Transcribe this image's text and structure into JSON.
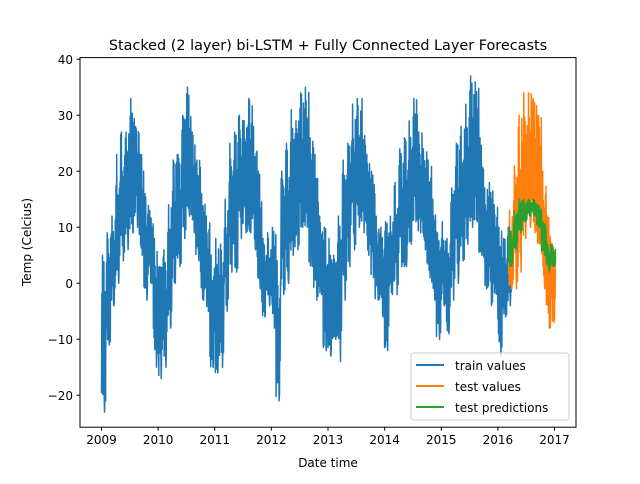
{
  "chart_data": {
    "type": "line",
    "title": "Stacked (2 layer) bi-LSTM + Fully Connected Layer Forecasts",
    "xlabel": "Date time",
    "ylabel": "Temp (Celcius)",
    "xlim": [
      2008.62,
      2017.38
    ],
    "ylim": [
      -25.7,
      40.3
    ],
    "xticks": [
      2009,
      2010,
      2011,
      2012,
      2013,
      2014,
      2015,
      2016,
      2017
    ],
    "xtick_labels": [
      "2009",
      "2010",
      "2011",
      "2012",
      "2013",
      "2014",
      "2015",
      "2016",
      "2017"
    ],
    "yticks": [
      -20,
      -10,
      0,
      10,
      20,
      30,
      40
    ],
    "ytick_labels": [
      "−20",
      "−10",
      "0",
      "10",
      "20",
      "30",
      "40"
    ],
    "legend_position": "bottom-right",
    "note": "values are monthly [min,max] envelopes of daily temperatures; start is fractional year",
    "series": [
      {
        "name": "train values",
        "color": "#1f77b4",
        "start": 2009.0,
        "monthly_minmax": [
          [
            -23,
            5
          ],
          [
            -11,
            9
          ],
          [
            -4,
            12
          ],
          [
            0,
            23
          ],
          [
            4,
            27
          ],
          [
            6,
            27
          ],
          [
            9,
            33
          ],
          [
            10,
            28
          ],
          [
            5,
            23
          ],
          [
            -3,
            16
          ],
          [
            0,
            13
          ],
          [
            -15,
            8
          ],
          [
            -17,
            3
          ],
          [
            -15,
            6
          ],
          [
            -8,
            14
          ],
          [
            0,
            22
          ],
          [
            3,
            23
          ],
          [
            8,
            30
          ],
          [
            12,
            35
          ],
          [
            9,
            27
          ],
          [
            4,
            22
          ],
          [
            -3,
            16
          ],
          [
            -5,
            12
          ],
          [
            -15,
            5
          ],
          [
            -16,
            8
          ],
          [
            -15,
            7
          ],
          [
            -5,
            15
          ],
          [
            2,
            25
          ],
          [
            2,
            27
          ],
          [
            8,
            30
          ],
          [
            9,
            29
          ],
          [
            9,
            33
          ],
          [
            6,
            28
          ],
          [
            -1,
            20
          ],
          [
            -6,
            8
          ],
          [
            -4,
            9
          ],
          [
            -8,
            10
          ],
          [
            -21,
            4
          ],
          [
            -2,
            20
          ],
          [
            0,
            25
          ],
          [
            5,
            31
          ],
          [
            6,
            29
          ],
          [
            10,
            34
          ],
          [
            10,
            35
          ],
          [
            3,
            26
          ],
          [
            -3,
            23
          ],
          [
            -2,
            12
          ],
          [
            -12,
            10
          ],
          [
            -13,
            8
          ],
          [
            -10,
            5
          ],
          [
            -14,
            12
          ],
          [
            -3,
            22
          ],
          [
            3,
            25
          ],
          [
            6,
            32
          ],
          [
            10,
            33
          ],
          [
            9,
            33
          ],
          [
            5,
            23
          ],
          [
            1,
            20
          ],
          [
            -3,
            12
          ],
          [
            -6,
            10
          ],
          [
            -12,
            11
          ],
          [
            -2,
            12
          ],
          [
            -2,
            18
          ],
          [
            3,
            24
          ],
          [
            3,
            26
          ],
          [
            7,
            29
          ],
          [
            11,
            33
          ],
          [
            9,
            27
          ],
          [
            6,
            24
          ],
          [
            1,
            22
          ],
          [
            -3,
            15
          ],
          [
            -10,
            9
          ],
          [
            -4,
            11
          ],
          [
            -9,
            8
          ],
          [
            -3,
            17
          ],
          [
            0,
            25
          ],
          [
            4,
            28
          ],
          [
            7,
            32
          ],
          [
            10,
            37
          ],
          [
            11,
            36
          ],
          [
            5,
            26
          ],
          [
            -1,
            17
          ],
          [
            -4,
            18
          ],
          [
            -2,
            14
          ],
          [
            -13,
            10
          ],
          [
            -6,
            8
          ],
          [
            -4,
            10
          ]
        ]
      },
      {
        "name": "test values",
        "color": "#ff7f0e",
        "start": 2016.19,
        "monthly_minmax": [
          [
            -1,
            13
          ],
          [
            -1,
            21
          ],
          [
            2,
            30
          ],
          [
            8,
            34
          ],
          [
            10,
            34
          ],
          [
            9,
            33
          ],
          [
            7,
            30
          ],
          [
            -1,
            20
          ],
          [
            -8,
            12
          ],
          [
            -7,
            7
          ]
        ]
      },
      {
        "name": "test predictions",
        "color": "#2ca02c",
        "start": 2016.19,
        "monthly_minmax": [
          [
            3,
            10
          ],
          [
            6,
            13
          ],
          [
            9,
            15
          ],
          [
            11,
            15
          ],
          [
            12,
            15
          ],
          [
            12,
            15
          ],
          [
            10,
            14
          ],
          [
            5,
            11
          ],
          [
            2,
            7
          ],
          [
            3,
            7
          ]
        ]
      }
    ]
  }
}
